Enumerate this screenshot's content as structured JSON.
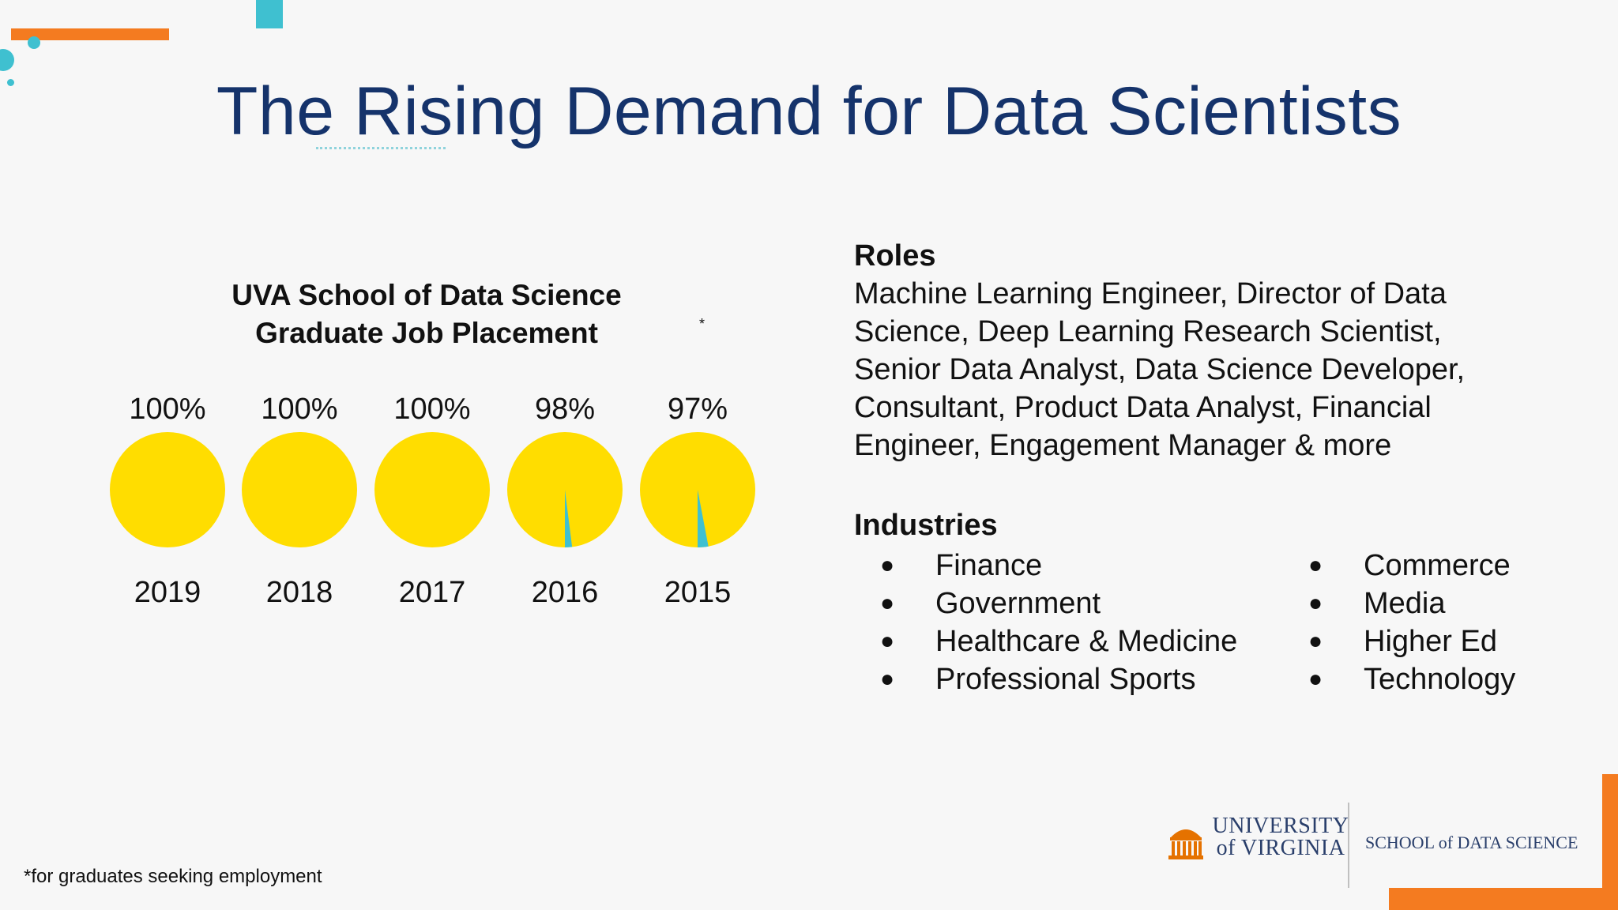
{
  "slide": {
    "title": "The Rising Demand for Data Scientists"
  },
  "chart_data": {
    "type": "pie",
    "title_line1": "UVA School of Data Science",
    "title_line2": "Graduate Job Placement",
    "title_mark": "*",
    "placed_color": "#ffdd00",
    "unplaced_color": "#3fc0d0",
    "pies": [
      {
        "year": "2019",
        "label": "100%",
        "value": 100
      },
      {
        "year": "2018",
        "label": "100%",
        "value": 100
      },
      {
        "year": "2017",
        "label": "100%",
        "value": 100
      },
      {
        "year": "2016",
        "label": "98%",
        "value": 98
      },
      {
        "year": "2015",
        "label": "97%",
        "value": 97
      }
    ]
  },
  "roles": {
    "heading": "Roles",
    "lines": [
      "Machine Learning Engineer, Director of Data",
      "Science, Deep Learning Research Scientist,",
      "Senior Data Analyst, Data Science Developer,",
      "Consultant, Product Data Analyst, Financial",
      "Engineer, Engagement Manager & more"
    ]
  },
  "industries": {
    "heading": "Industries",
    "col1": [
      "Finance",
      "Government",
      "Healthcare & Medicine",
      "Professional Sports"
    ],
    "col2": [
      "Commerce",
      "Media",
      "Higher Ed",
      "Technology"
    ]
  },
  "footnote": "*for graduates seeking employment",
  "logo": {
    "uva_line1": "UNIVERSITY",
    "uva_line2": "of VIRGINIA",
    "sds": "SCHOOL of DATA SCIENCE"
  },
  "colors": {
    "title": "#15336b",
    "accent_orange": "#f47b20",
    "accent_teal": "#3fc0d0"
  }
}
